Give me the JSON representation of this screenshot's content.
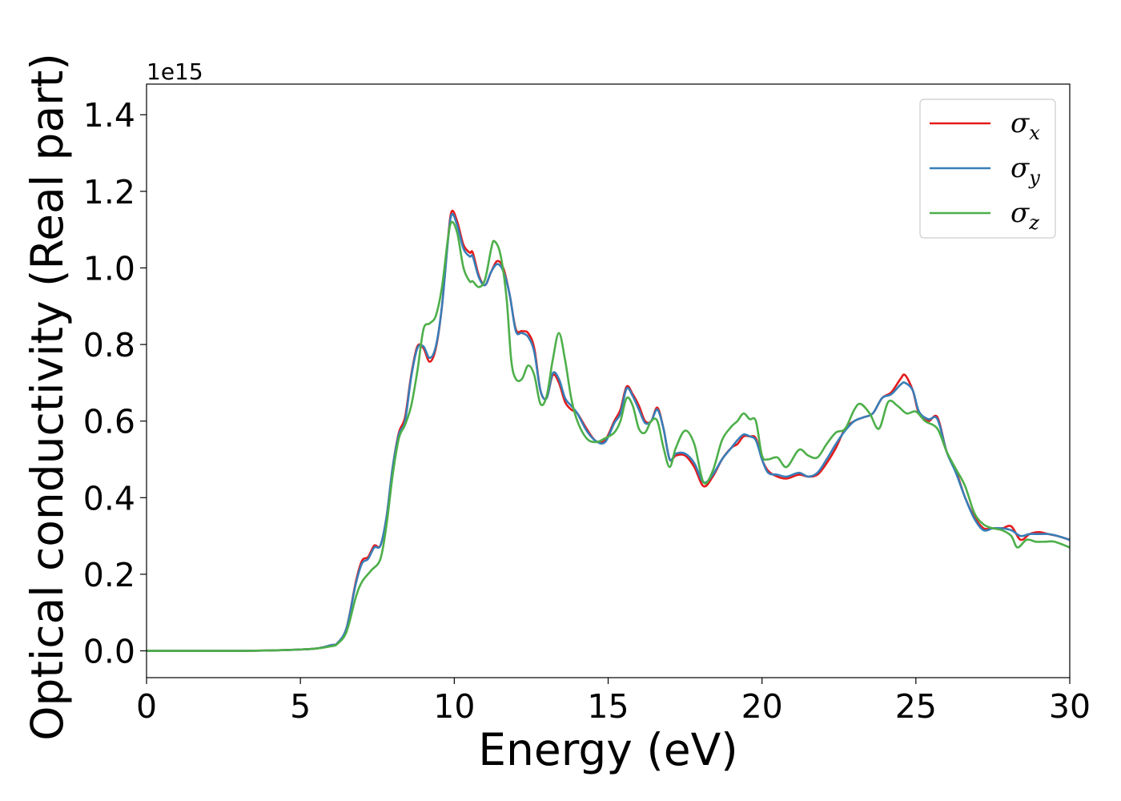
{
  "chart_data": {
    "type": "line",
    "title": "",
    "xlabel": "Energy (eV)",
    "ylabel": "Optical conductivity (Real part)",
    "y_offset_label": "1e15",
    "xlim": [
      0,
      30
    ],
    "ylim": [
      -0.07,
      1.48
    ],
    "y_scale_factor": 1000000000000000.0,
    "xticks": [
      0,
      5,
      10,
      15,
      20,
      25,
      30
    ],
    "xtick_labels": [
      "0",
      "5",
      "10",
      "15",
      "20",
      "25",
      "30"
    ],
    "yticks": [
      0.0,
      0.2,
      0.4,
      0.6,
      0.8,
      1.0,
      1.2,
      1.4
    ],
    "ytick_labels": [
      "0.0",
      "0.2",
      "0.4",
      "0.6",
      "0.8",
      "1.0",
      "1.2",
      "1.4"
    ],
    "grid": false,
    "legend_position": "top-right",
    "series": [
      {
        "name": "σx",
        "legend_base": "σ",
        "legend_sub": "x",
        "color": "#e41a1c",
        "points": [
          [
            0,
            0
          ],
          [
            3,
            0
          ],
          [
            4.5,
            0.002
          ],
          [
            5.5,
            0.006
          ],
          [
            6,
            0.015
          ],
          [
            6.2,
            0.02
          ],
          [
            6.5,
            0.06
          ],
          [
            6.8,
            0.18
          ],
          [
            7,
            0.235
          ],
          [
            7.2,
            0.245
          ],
          [
            7.4,
            0.275
          ],
          [
            7.6,
            0.275
          ],
          [
            7.8,
            0.35
          ],
          [
            8,
            0.48
          ],
          [
            8.2,
            0.57
          ],
          [
            8.4,
            0.61
          ],
          [
            8.6,
            0.72
          ],
          [
            8.8,
            0.795
          ],
          [
            9,
            0.79
          ],
          [
            9.2,
            0.755
          ],
          [
            9.4,
            0.79
          ],
          [
            9.6,
            0.9
          ],
          [
            9.8,
            1.08
          ],
          [
            9.92,
            1.148
          ],
          [
            10.1,
            1.12
          ],
          [
            10.3,
            1.06
          ],
          [
            10.5,
            1.04
          ],
          [
            10.6,
            1.04
          ],
          [
            10.8,
            0.98
          ],
          [
            11,
            0.955
          ],
          [
            11.2,
            0.99
          ],
          [
            11.4,
            1.018
          ],
          [
            11.6,
            0.998
          ],
          [
            11.8,
            0.93
          ],
          [
            12,
            0.84
          ],
          [
            12.2,
            0.835
          ],
          [
            12.4,
            0.83
          ],
          [
            12.6,
            0.79
          ],
          [
            12.8,
            0.68
          ],
          [
            13,
            0.66
          ],
          [
            13.2,
            0.72
          ],
          [
            13.4,
            0.7
          ],
          [
            13.6,
            0.65
          ],
          [
            13.8,
            0.63
          ],
          [
            14,
            0.62
          ],
          [
            14.3,
            0.58
          ],
          [
            14.6,
            0.548
          ],
          [
            14.9,
            0.55
          ],
          [
            15.2,
            0.6
          ],
          [
            15.4,
            0.63
          ],
          [
            15.6,
            0.69
          ],
          [
            15.8,
            0.67
          ],
          [
            16,
            0.64
          ],
          [
            16.2,
            0.6
          ],
          [
            16.4,
            0.6
          ],
          [
            16.6,
            0.635
          ],
          [
            16.8,
            0.58
          ],
          [
            17,
            0.5
          ],
          [
            17.2,
            0.51
          ],
          [
            17.5,
            0.51
          ],
          [
            17.8,
            0.48
          ],
          [
            18.1,
            0.43
          ],
          [
            18.4,
            0.455
          ],
          [
            18.7,
            0.5
          ],
          [
            19,
            0.53
          ],
          [
            19.2,
            0.54
          ],
          [
            19.4,
            0.56
          ],
          [
            19.6,
            0.56
          ],
          [
            19.8,
            0.555
          ],
          [
            20,
            0.5
          ],
          [
            20.2,
            0.47
          ],
          [
            20.5,
            0.455
          ],
          [
            20.8,
            0.45
          ],
          [
            21.2,
            0.46
          ],
          [
            21.5,
            0.455
          ],
          [
            21.8,
            0.46
          ],
          [
            22.1,
            0.49
          ],
          [
            22.4,
            0.53
          ],
          [
            22.7,
            0.58
          ],
          [
            23,
            0.6
          ],
          [
            23.3,
            0.61
          ],
          [
            23.6,
            0.62
          ],
          [
            23.9,
            0.66
          ],
          [
            24.2,
            0.675
          ],
          [
            24.5,
            0.71
          ],
          [
            24.65,
            0.72
          ],
          [
            24.9,
            0.68
          ],
          [
            25.1,
            0.62
          ],
          [
            25.4,
            0.6
          ],
          [
            25.7,
            0.61
          ],
          [
            26,
            0.52
          ],
          [
            26.3,
            0.47
          ],
          [
            26.6,
            0.4
          ],
          [
            26.9,
            0.35
          ],
          [
            27.2,
            0.32
          ],
          [
            27.5,
            0.32
          ],
          [
            27.8,
            0.32
          ],
          [
            28.1,
            0.325
          ],
          [
            28.4,
            0.29
          ],
          [
            28.7,
            0.305
          ],
          [
            29,
            0.31
          ],
          [
            29.3,
            0.305
          ],
          [
            29.6,
            0.3
          ],
          [
            30,
            0.29
          ]
        ]
      },
      {
        "name": "σy",
        "legend_base": "σ",
        "legend_sub": "y",
        "color": "#377eb8",
        "points": [
          [
            0,
            0
          ],
          [
            3,
            0
          ],
          [
            4.5,
            0.002
          ],
          [
            5.5,
            0.006
          ],
          [
            6,
            0.015
          ],
          [
            6.2,
            0.02
          ],
          [
            6.5,
            0.06
          ],
          [
            6.8,
            0.175
          ],
          [
            7,
            0.228
          ],
          [
            7.2,
            0.24
          ],
          [
            7.4,
            0.27
          ],
          [
            7.6,
            0.275
          ],
          [
            7.8,
            0.35
          ],
          [
            8,
            0.48
          ],
          [
            8.2,
            0.565
          ],
          [
            8.4,
            0.6
          ],
          [
            8.6,
            0.715
          ],
          [
            8.8,
            0.79
          ],
          [
            9,
            0.795
          ],
          [
            9.2,
            0.765
          ],
          [
            9.4,
            0.795
          ],
          [
            9.6,
            0.9
          ],
          [
            9.8,
            1.075
          ],
          [
            9.92,
            1.14
          ],
          [
            10.1,
            1.11
          ],
          [
            10.3,
            1.05
          ],
          [
            10.5,
            1.03
          ],
          [
            10.6,
            1.03
          ],
          [
            10.8,
            0.975
          ],
          [
            11,
            0.955
          ],
          [
            11.2,
            0.99
          ],
          [
            11.4,
            1.01
          ],
          [
            11.6,
            0.99
          ],
          [
            11.8,
            0.93
          ],
          [
            12,
            0.835
          ],
          [
            12.2,
            0.83
          ],
          [
            12.4,
            0.82
          ],
          [
            12.6,
            0.78
          ],
          [
            12.8,
            0.68
          ],
          [
            13,
            0.66
          ],
          [
            13.2,
            0.725
          ],
          [
            13.4,
            0.71
          ],
          [
            13.6,
            0.66
          ],
          [
            13.8,
            0.64
          ],
          [
            14,
            0.62
          ],
          [
            14.3,
            0.575
          ],
          [
            14.6,
            0.548
          ],
          [
            14.9,
            0.545
          ],
          [
            15.2,
            0.595
          ],
          [
            15.4,
            0.62
          ],
          [
            15.6,
            0.685
          ],
          [
            15.8,
            0.665
          ],
          [
            16,
            0.63
          ],
          [
            16.2,
            0.595
          ],
          [
            16.4,
            0.6
          ],
          [
            16.6,
            0.63
          ],
          [
            16.8,
            0.58
          ],
          [
            17,
            0.5
          ],
          [
            17.2,
            0.515
          ],
          [
            17.5,
            0.515
          ],
          [
            17.8,
            0.49
          ],
          [
            18.1,
            0.44
          ],
          [
            18.4,
            0.46
          ],
          [
            18.7,
            0.5
          ],
          [
            19,
            0.53
          ],
          [
            19.2,
            0.55
          ],
          [
            19.4,
            0.565
          ],
          [
            19.6,
            0.56
          ],
          [
            19.8,
            0.55
          ],
          [
            20,
            0.5
          ],
          [
            20.2,
            0.465
          ],
          [
            20.5,
            0.46
          ],
          [
            20.8,
            0.455
          ],
          [
            21.2,
            0.465
          ],
          [
            21.5,
            0.455
          ],
          [
            21.8,
            0.465
          ],
          [
            22.1,
            0.5
          ],
          [
            22.4,
            0.54
          ],
          [
            22.7,
            0.575
          ],
          [
            23,
            0.6
          ],
          [
            23.3,
            0.61
          ],
          [
            23.6,
            0.62
          ],
          [
            23.9,
            0.66
          ],
          [
            24.2,
            0.67
          ],
          [
            24.5,
            0.695
          ],
          [
            24.65,
            0.7
          ],
          [
            24.9,
            0.68
          ],
          [
            25.1,
            0.625
          ],
          [
            25.4,
            0.605
          ],
          [
            25.7,
            0.605
          ],
          [
            26,
            0.52
          ],
          [
            26.3,
            0.465
          ],
          [
            26.6,
            0.4
          ],
          [
            26.9,
            0.345
          ],
          [
            27.2,
            0.315
          ],
          [
            27.5,
            0.32
          ],
          [
            27.8,
            0.32
          ],
          [
            28.1,
            0.315
          ],
          [
            28.4,
            0.3
          ],
          [
            28.7,
            0.305
          ],
          [
            29,
            0.305
          ],
          [
            29.3,
            0.305
          ],
          [
            29.6,
            0.3
          ],
          [
            30,
            0.29
          ]
        ]
      },
      {
        "name": "σz",
        "legend_base": "σ",
        "legend_sub": "z",
        "color": "#4daf4a",
        "points": [
          [
            0,
            0
          ],
          [
            3,
            0
          ],
          [
            4.5,
            0.002
          ],
          [
            5.5,
            0.006
          ],
          [
            6,
            0.012
          ],
          [
            6.2,
            0.018
          ],
          [
            6.5,
            0.05
          ],
          [
            6.8,
            0.14
          ],
          [
            7,
            0.18
          ],
          [
            7.3,
            0.21
          ],
          [
            7.6,
            0.24
          ],
          [
            7.8,
            0.33
          ],
          [
            8,
            0.46
          ],
          [
            8.2,
            0.555
          ],
          [
            8.4,
            0.59
          ],
          [
            8.6,
            0.64
          ],
          [
            8.8,
            0.73
          ],
          [
            9,
            0.84
          ],
          [
            9.2,
            0.855
          ],
          [
            9.4,
            0.875
          ],
          [
            9.6,
            0.95
          ],
          [
            9.8,
            1.08
          ],
          [
            9.92,
            1.12
          ],
          [
            10.1,
            1.09
          ],
          [
            10.3,
            1.0
          ],
          [
            10.5,
            0.965
          ],
          [
            10.6,
            0.965
          ],
          [
            10.8,
            0.95
          ],
          [
            11,
            0.97
          ],
          [
            11.2,
            1.05
          ],
          [
            11.3,
            1.07
          ],
          [
            11.5,
            1.035
          ],
          [
            11.7,
            0.92
          ],
          [
            11.85,
            0.76
          ],
          [
            12,
            0.71
          ],
          [
            12.2,
            0.71
          ],
          [
            12.4,
            0.745
          ],
          [
            12.6,
            0.72
          ],
          [
            12.8,
            0.645
          ],
          [
            13,
            0.665
          ],
          [
            13.2,
            0.76
          ],
          [
            13.4,
            0.83
          ],
          [
            13.6,
            0.76
          ],
          [
            13.8,
            0.66
          ],
          [
            14,
            0.6
          ],
          [
            14.3,
            0.555
          ],
          [
            14.6,
            0.545
          ],
          [
            14.9,
            0.555
          ],
          [
            15.2,
            0.57
          ],
          [
            15.4,
            0.6
          ],
          [
            15.6,
            0.66
          ],
          [
            15.8,
            0.64
          ],
          [
            16,
            0.58
          ],
          [
            16.2,
            0.57
          ],
          [
            16.4,
            0.6
          ],
          [
            16.6,
            0.6
          ],
          [
            16.8,
            0.53
          ],
          [
            17,
            0.48
          ],
          [
            17.2,
            0.53
          ],
          [
            17.5,
            0.575
          ],
          [
            17.8,
            0.54
          ],
          [
            18.1,
            0.44
          ],
          [
            18.4,
            0.47
          ],
          [
            18.7,
            0.55
          ],
          [
            19,
            0.585
          ],
          [
            19.2,
            0.6
          ],
          [
            19.4,
            0.62
          ],
          [
            19.6,
            0.605
          ],
          [
            19.8,
            0.6
          ],
          [
            20,
            0.51
          ],
          [
            20.2,
            0.5
          ],
          [
            20.5,
            0.505
          ],
          [
            20.8,
            0.48
          ],
          [
            21.2,
            0.525
          ],
          [
            21.5,
            0.51
          ],
          [
            21.8,
            0.505
          ],
          [
            22.1,
            0.54
          ],
          [
            22.4,
            0.57
          ],
          [
            22.7,
            0.58
          ],
          [
            23,
            0.63
          ],
          [
            23.2,
            0.645
          ],
          [
            23.5,
            0.62
          ],
          [
            23.8,
            0.58
          ],
          [
            24.1,
            0.65
          ],
          [
            24.4,
            0.64
          ],
          [
            24.7,
            0.62
          ],
          [
            25,
            0.625
          ],
          [
            25.3,
            0.6
          ],
          [
            25.7,
            0.58
          ],
          [
            26,
            0.52
          ],
          [
            26.3,
            0.475
          ],
          [
            26.6,
            0.43
          ],
          [
            26.9,
            0.36
          ],
          [
            27.2,
            0.33
          ],
          [
            27.5,
            0.32
          ],
          [
            27.8,
            0.315
          ],
          [
            28.1,
            0.3
          ],
          [
            28.3,
            0.27
          ],
          [
            28.6,
            0.29
          ],
          [
            28.9,
            0.285
          ],
          [
            29.2,
            0.285
          ],
          [
            29.5,
            0.285
          ],
          [
            30,
            0.27
          ]
        ]
      }
    ]
  }
}
